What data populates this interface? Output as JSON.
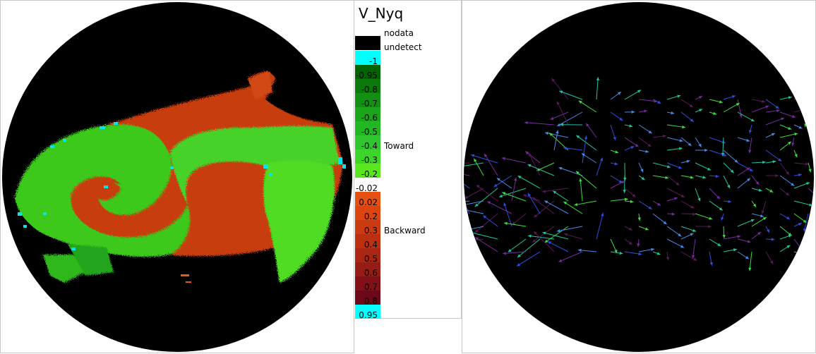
{
  "legend": {
    "title": "V_Nyq",
    "nodata_label": "nodata",
    "undetect_label": "undetect",
    "toward_label": "Toward",
    "backward_label": "Backward",
    "entries": [
      {
        "label": "-1",
        "color": "#00ffff",
        "text_color": "#000000"
      },
      {
        "label": "-0.95",
        "color": "#006400",
        "text_color": "#000000"
      },
      {
        "label": "-0.8",
        "color": "#0a7a0a",
        "text_color": "#000000"
      },
      {
        "label": "-0.7",
        "color": "#129012",
        "text_color": "#000000"
      },
      {
        "label": "-0.6",
        "color": "#1aa51a",
        "text_color": "#000000"
      },
      {
        "label": "-0.5",
        "color": "#22b822",
        "text_color": "#000000"
      },
      {
        "label": "-0.4",
        "color": "#2ec82e",
        "text_color": "#000000"
      },
      {
        "label": "-0.3",
        "color": "#3cd62a",
        "text_color": "#000000"
      },
      {
        "label": "-0.2",
        "color": "#5ae61e",
        "text_color": "#000000"
      },
      {
        "label": "-0.02",
        "color": "#ffffff",
        "text_color": "#000000"
      },
      {
        "label": "0.02",
        "color": "#e65010",
        "text_color": "#000000"
      },
      {
        "label": "0.2",
        "color": "#dc4410",
        "text_color": "#000000"
      },
      {
        "label": "0.3",
        "color": "#cc3a10",
        "text_color": "#000000"
      },
      {
        "label": "0.4",
        "color": "#bc3010",
        "text_color": "#000000"
      },
      {
        "label": "0.5",
        "color": "#aa2612",
        "text_color": "#000000"
      },
      {
        "label": "0.6",
        "color": "#961c14",
        "text_color": "#000000"
      },
      {
        "label": "0.7",
        "color": "#821016",
        "text_color": "#000000"
      },
      {
        "label": "0.8",
        "color": "#6e0818",
        "text_color": "#000000"
      },
      {
        "label": "0.95",
        "color": "#00ffff",
        "text_color": "#000000"
      }
    ]
  },
  "colors": {
    "background": "#000000",
    "toward": "#3ccc1e",
    "backward": "#c83c10",
    "edge": "#00e5ee"
  }
}
